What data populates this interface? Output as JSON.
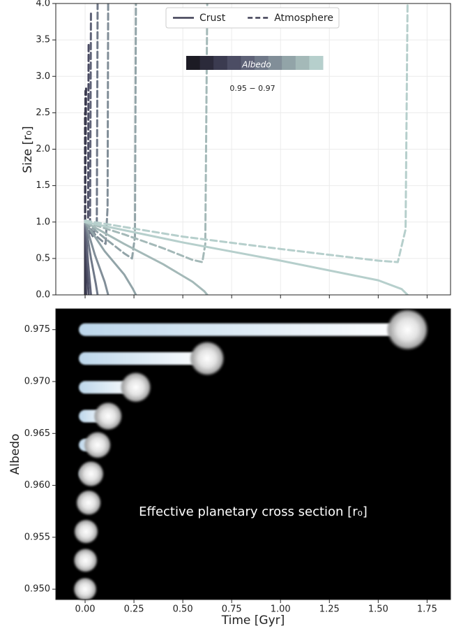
{
  "chart_data": [
    {
      "type": "line",
      "ylabel": "Size [r₀]",
      "xlim": [
        -0.15,
        1.87
      ],
      "ylim": [
        0,
        4
      ],
      "xticks": [
        0,
        0.25,
        0.5,
        0.75,
        1,
        1.25,
        1.5,
        1.75
      ],
      "yticks": [
        {
          "value": 0,
          "label": "0.0"
        },
        {
          "value": 0.5,
          "label": "0.5"
        },
        {
          "value": 1,
          "label": "1.0"
        },
        {
          "value": 1.5,
          "label": "1.5"
        },
        {
          "value": 2,
          "label": "2.0"
        },
        {
          "value": 2.5,
          "label": "2.5"
        },
        {
          "value": 3,
          "label": "3.0"
        },
        {
          "value": 3.5,
          "label": "3.5"
        },
        {
          "value": 4,
          "label": "4.0"
        }
      ],
      "grid": true,
      "legend": {
        "position": "upper center",
        "color": "#3f3f55",
        "entries": [
          {
            "label": "Crust",
            "dash": false
          },
          {
            "label": "Atmosphere",
            "dash": true
          }
        ]
      },
      "colorbar": {
        "label": "Albedo",
        "range_label": "0.95 − 0.97"
      },
      "series": [
        {
          "color": "#1c1b24",
          "crust": {
            "x": [
              0,
              0
            ],
            "y": [
              1,
              0
            ]
          },
          "atmosphere": {
            "x": [
              0,
              0
            ],
            "y": [
              1,
              2.5
            ]
          }
        },
        {
          "color": "#2b2a3a",
          "crust": {
            "x": [
              0,
              0.001,
              0.002
            ],
            "y": [
              1,
              0.4,
              0
            ]
          },
          "atmosphere": {
            "x": [
              0,
              0.002
            ],
            "y": [
              1,
              2.8
            ]
          }
        },
        {
          "color": "#3b3b50",
          "crust": {
            "x": [
              0,
              0.0025,
              0.005
            ],
            "y": [
              1,
              0.4,
              0
            ]
          },
          "atmosphere": {
            "x": [
              0,
              0.005
            ],
            "y": [
              1,
              2.85
            ]
          }
        },
        {
          "color": "#4c4d64",
          "crust": {
            "x": [
              0,
              0.009,
              0.018
            ],
            "y": [
              1,
              0.4,
              0
            ]
          },
          "atmosphere": {
            "x": [
              0,
              0.015,
              0.018
            ],
            "y": [
              1,
              0.9,
              3.45
            ]
          }
        },
        {
          "color": "#5e6277",
          "crust": {
            "x": [
              0,
              0.015,
              0.03
            ],
            "y": [
              1,
              0.45,
              0
            ]
          },
          "atmosphere": {
            "x": [
              0,
              0.025,
              0.03
            ],
            "y": [
              1,
              0.85,
              3.9
            ]
          }
        },
        {
          "color": "#6f7888",
          "crust": {
            "x": [
              0,
              0.03,
              0.055,
              0.064
            ],
            "y": [
              1,
              0.5,
              0.15,
              0
            ]
          },
          "atmosphere": {
            "x": [
              0,
              0.04,
              0.06,
              0.064
            ],
            "y": [
              1,
              0.8,
              1,
              4
            ]
          }
        },
        {
          "color": "#818e98",
          "crust": {
            "x": [
              0,
              0.05,
              0.1,
              0.118
            ],
            "y": [
              1,
              0.55,
              0.18,
              0
            ]
          },
          "atmosphere": {
            "x": [
              0,
              0.06,
              0.105,
              0.115,
              0.118
            ],
            "y": [
              1,
              0.8,
              0.7,
              1.2,
              4
            ]
          }
        },
        {
          "color": "#92a4a8",
          "crust": {
            "x": [
              0,
              0.1,
              0.2,
              0.245,
              0.26
            ],
            "y": [
              1,
              0.6,
              0.28,
              0.08,
              0
            ]
          },
          "atmosphere": {
            "x": [
              0,
              0.1,
              0.2,
              0.24,
              0.255,
              0.26
            ],
            "y": [
              1,
              0.78,
              0.57,
              0.5,
              0.8,
              4
            ]
          }
        },
        {
          "color": "#a4b9b8",
          "crust": {
            "x": [
              0,
              0.2,
              0.4,
              0.55,
              0.61,
              0.625
            ],
            "y": [
              1,
              0.7,
              0.42,
              0.18,
              0.05,
              0
            ]
          },
          "atmosphere": {
            "x": [
              0,
              0.2,
              0.4,
              0.55,
              0.6,
              0.615,
              0.625
            ],
            "y": [
              1,
              0.83,
              0.64,
              0.48,
              0.45,
              0.7,
              4
            ]
          }
        },
        {
          "color": "#b6cfcc",
          "crust": {
            "x": [
              0,
              0.5,
              1,
              1.5,
              1.62,
              1.65
            ],
            "y": [
              1,
              0.72,
              0.47,
              0.2,
              0.08,
              0
            ]
          },
          "atmosphere": {
            "x": [
              0,
              0.5,
              1,
              1.5,
              1.6,
              1.64,
              1.65
            ],
            "y": [
              1.02,
              0.8,
              0.63,
              0.47,
              0.45,
              0.9,
              4
            ]
          }
        }
      ]
    },
    {
      "type": "lifetime",
      "xlabel": "Time [Gyr]",
      "ylabel": "Albedo",
      "annotation": "Effective planetary cross section [r₀]",
      "xlim": [
        -0.15,
        1.87
      ],
      "ylim": [
        0.949,
        0.977
      ],
      "xticks": [
        {
          "value": 0,
          "label": "0.00"
        },
        {
          "value": 0.25,
          "label": "0.25"
        },
        {
          "value": 0.5,
          "label": "0.50"
        },
        {
          "value": 0.75,
          "label": "0.75"
        },
        {
          "value": 1,
          "label": "1.00"
        },
        {
          "value": 1.25,
          "label": "1.25"
        },
        {
          "value": 1.5,
          "label": "1.50"
        },
        {
          "value": 1.75,
          "label": "1.75"
        }
      ],
      "yticks": [
        {
          "value": 0.95,
          "label": "0.950"
        },
        {
          "value": 0.955,
          "label": "0.955"
        },
        {
          "value": 0.96,
          "label": "0.960"
        },
        {
          "value": 0.965,
          "label": "0.965"
        },
        {
          "value": 0.97,
          "label": "0.970"
        },
        {
          "value": 0.975,
          "label": "0.975"
        }
      ],
      "background": "#000000",
      "y": [
        0.95,
        0.952778,
        0.955556,
        0.958333,
        0.961111,
        0.963889,
        0.966667,
        0.969444,
        0.972222,
        0.975
      ],
      "values": [
        0,
        0.002,
        0.005,
        0.018,
        0.03,
        0.064,
        0.118,
        0.26,
        0.625,
        1.65
      ]
    }
  ]
}
